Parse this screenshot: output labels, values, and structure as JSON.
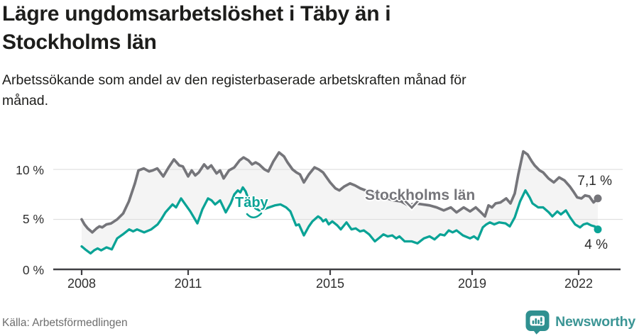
{
  "header": {
    "title": "Lägre ungdomsarbetslöshet i Täby än i\nStockholms län",
    "subtitle": "Arbetssökande som andel av den registerbaserade arbetskraften månad för\nmånad."
  },
  "chart_data": {
    "type": "line",
    "title": "Lägre ungdomsarbetslöshet i Täby än i Stockholms län",
    "subtitle": "Arbetssökande som andel av den registerbaserade arbetskraften månad för månad.",
    "grid": "horizontal-only",
    "legend_position": "inline-labels",
    "band_fill": "#f4f4f4",
    "x_axis": {
      "range": [
        2007.2,
        2023.2
      ],
      "ticks": [
        2008,
        2011,
        2015,
        2019,
        2022
      ],
      "labels": [
        "2008",
        "2011",
        "2015",
        "2019",
        "2022"
      ]
    },
    "y_axis": {
      "range": [
        0,
        12.5
      ],
      "unit": "%",
      "ticks": [
        0,
        5,
        10
      ],
      "labels": [
        "0 %",
        "5 %",
        "10 %"
      ]
    },
    "series": [
      {
        "name": "Stockholms län",
        "color": "#75757a",
        "end_label": "7,1 %",
        "end_value": 7.1,
        "points": [
          [
            2008.0,
            5.0
          ],
          [
            2008.08,
            4.5
          ],
          [
            2008.17,
            4.1
          ],
          [
            2008.3,
            3.7
          ],
          [
            2008.42,
            4.1
          ],
          [
            2008.5,
            4.3
          ],
          [
            2008.58,
            4.2
          ],
          [
            2008.7,
            4.5
          ],
          [
            2008.83,
            4.6
          ],
          [
            2009.0,
            5.0
          ],
          [
            2009.17,
            5.6
          ],
          [
            2009.33,
            6.8
          ],
          [
            2009.5,
            8.6
          ],
          [
            2009.6,
            9.9
          ],
          [
            2009.75,
            10.1
          ],
          [
            2009.9,
            9.8
          ],
          [
            2010.0,
            9.9
          ],
          [
            2010.13,
            10.1
          ],
          [
            2010.3,
            9.3
          ],
          [
            2010.45,
            10.2
          ],
          [
            2010.6,
            11.0
          ],
          [
            2010.75,
            10.4
          ],
          [
            2010.85,
            10.3
          ],
          [
            2011.0,
            9.3
          ],
          [
            2011.1,
            9.9
          ],
          [
            2011.2,
            9.4
          ],
          [
            2011.3,
            9.7
          ],
          [
            2011.45,
            10.5
          ],
          [
            2011.55,
            10.1
          ],
          [
            2011.65,
            10.4
          ],
          [
            2011.8,
            9.6
          ],
          [
            2011.9,
            9.9
          ],
          [
            2012.0,
            9.1
          ],
          [
            2012.15,
            9.9
          ],
          [
            2012.3,
            10.2
          ],
          [
            2012.45,
            10.9
          ],
          [
            2012.56,
            11.2
          ],
          [
            2012.7,
            10.9
          ],
          [
            2012.8,
            10.5
          ],
          [
            2012.9,
            10.7
          ],
          [
            2013.0,
            10.5
          ],
          [
            2013.15,
            10.0
          ],
          [
            2013.26,
            9.8
          ],
          [
            2013.4,
            10.8
          ],
          [
            2013.56,
            11.7
          ],
          [
            2013.7,
            11.3
          ],
          [
            2013.8,
            10.7
          ],
          [
            2013.94,
            10.0
          ],
          [
            2014.05,
            9.7
          ],
          [
            2014.15,
            9.5
          ],
          [
            2014.26,
            8.7
          ],
          [
            2014.4,
            9.5
          ],
          [
            2014.56,
            10.2
          ],
          [
            2014.68,
            10.0
          ],
          [
            2014.8,
            9.7
          ],
          [
            2015.0,
            8.7
          ],
          [
            2015.15,
            8.1
          ],
          [
            2015.26,
            7.9
          ],
          [
            2015.4,
            8.3
          ],
          [
            2015.56,
            8.6
          ],
          [
            2015.7,
            8.4
          ],
          [
            2015.85,
            8.1
          ],
          [
            2016.0,
            7.9
          ],
          [
            2016.2,
            7.6
          ],
          [
            2016.4,
            7.3
          ],
          [
            2016.6,
            7.1
          ],
          [
            2016.8,
            6.9
          ],
          [
            2017.0,
            6.8
          ],
          [
            2017.2,
            6.4
          ],
          [
            2017.4,
            6.6
          ],
          [
            2017.6,
            6.5
          ],
          [
            2017.8,
            6.4
          ],
          [
            2018.0,
            6.2
          ],
          [
            2018.2,
            5.9
          ],
          [
            2018.4,
            6.2
          ],
          [
            2018.56,
            5.7
          ],
          [
            2018.76,
            6.2
          ],
          [
            2018.94,
            5.8
          ],
          [
            2019.1,
            6.2
          ],
          [
            2019.25,
            5.7
          ],
          [
            2019.36,
            5.3
          ],
          [
            2019.46,
            6.4
          ],
          [
            2019.56,
            6.2
          ],
          [
            2019.66,
            6.6
          ],
          [
            2019.8,
            6.7
          ],
          [
            2019.96,
            7.1
          ],
          [
            2020.08,
            6.6
          ],
          [
            2020.2,
            7.6
          ],
          [
            2020.3,
            9.5
          ],
          [
            2020.44,
            11.8
          ],
          [
            2020.56,
            11.5
          ],
          [
            2020.68,
            10.8
          ],
          [
            2020.76,
            10.4
          ],
          [
            2020.9,
            9.9
          ],
          [
            2021.0,
            9.7
          ],
          [
            2021.15,
            9.1
          ],
          [
            2021.3,
            8.7
          ],
          [
            2021.45,
            9.2
          ],
          [
            2021.6,
            8.9
          ],
          [
            2021.75,
            8.3
          ],
          [
            2021.85,
            7.8
          ],
          [
            2021.96,
            7.2
          ],
          [
            2022.08,
            7.1
          ],
          [
            2022.18,
            7.4
          ],
          [
            2022.3,
            7.3
          ],
          [
            2022.42,
            6.7
          ],
          [
            2022.54,
            7.1
          ]
        ]
      },
      {
        "name": "Täby",
        "color": "#0aa396",
        "end_label": "4 %",
        "end_value": 4.0,
        "points": [
          [
            2008.0,
            2.3
          ],
          [
            2008.1,
            2.0
          ],
          [
            2008.25,
            1.6
          ],
          [
            2008.35,
            1.9
          ],
          [
            2008.45,
            2.1
          ],
          [
            2008.55,
            1.9
          ],
          [
            2008.7,
            2.2
          ],
          [
            2008.85,
            2.0
          ],
          [
            2009.0,
            3.1
          ],
          [
            2009.16,
            3.5
          ],
          [
            2009.34,
            4.0
          ],
          [
            2009.45,
            3.8
          ],
          [
            2009.56,
            4.0
          ],
          [
            2009.76,
            3.7
          ],
          [
            2009.96,
            4.0
          ],
          [
            2010.14,
            4.5
          ],
          [
            2010.24,
            5.0
          ],
          [
            2010.36,
            5.7
          ],
          [
            2010.56,
            6.5
          ],
          [
            2010.66,
            6.2
          ],
          [
            2010.8,
            7.1
          ],
          [
            2010.9,
            6.6
          ],
          [
            2011.06,
            5.8
          ],
          [
            2011.26,
            4.6
          ],
          [
            2011.4,
            6.0
          ],
          [
            2011.56,
            7.1
          ],
          [
            2011.66,
            6.9
          ],
          [
            2011.76,
            6.5
          ],
          [
            2011.9,
            6.9
          ],
          [
            2012.06,
            5.7
          ],
          [
            2012.2,
            6.6
          ],
          [
            2012.3,
            7.5
          ],
          [
            2012.4,
            7.9
          ],
          [
            2012.47,
            7.7
          ],
          [
            2012.54,
            8.2
          ],
          [
            2012.62,
            7.8
          ],
          [
            2012.75,
            6.5
          ],
          [
            2012.9,
            6.1
          ],
          [
            2013.0,
            5.9
          ],
          [
            2013.2,
            6.1
          ],
          [
            2013.44,
            6.4
          ],
          [
            2013.6,
            6.5
          ],
          [
            2013.76,
            6.2
          ],
          [
            2013.88,
            5.8
          ],
          [
            2014.04,
            4.4
          ],
          [
            2014.12,
            4.5
          ],
          [
            2014.26,
            3.4
          ],
          [
            2014.4,
            4.3
          ],
          [
            2014.5,
            4.8
          ],
          [
            2014.66,
            5.3
          ],
          [
            2014.74,
            5.1
          ],
          [
            2014.8,
            4.8
          ],
          [
            2014.88,
            5.0
          ],
          [
            2014.96,
            4.5
          ],
          [
            2015.06,
            4.8
          ],
          [
            2015.2,
            4.4
          ],
          [
            2015.3,
            4.0
          ],
          [
            2015.46,
            4.7
          ],
          [
            2015.6,
            4.0
          ],
          [
            2015.72,
            4.1
          ],
          [
            2015.84,
            3.8
          ],
          [
            2015.95,
            3.9
          ],
          [
            2016.1,
            3.5
          ],
          [
            2016.26,
            2.8
          ],
          [
            2016.4,
            3.2
          ],
          [
            2016.5,
            3.5
          ],
          [
            2016.62,
            3.3
          ],
          [
            2016.75,
            3.4
          ],
          [
            2016.86,
            3.1
          ],
          [
            2016.95,
            3.3
          ],
          [
            2017.1,
            2.8
          ],
          [
            2017.3,
            2.8
          ],
          [
            2017.46,
            2.6
          ],
          [
            2017.64,
            3.1
          ],
          [
            2017.8,
            3.3
          ],
          [
            2017.94,
            3.0
          ],
          [
            2018.1,
            3.5
          ],
          [
            2018.22,
            3.4
          ],
          [
            2018.34,
            3.9
          ],
          [
            2018.45,
            3.7
          ],
          [
            2018.56,
            3.9
          ],
          [
            2018.74,
            3.4
          ],
          [
            2018.94,
            3.1
          ],
          [
            2019.05,
            3.3
          ],
          [
            2019.16,
            3.0
          ],
          [
            2019.3,
            4.2
          ],
          [
            2019.4,
            4.5
          ],
          [
            2019.5,
            4.7
          ],
          [
            2019.62,
            4.5
          ],
          [
            2019.76,
            4.7
          ],
          [
            2019.94,
            4.6
          ],
          [
            2020.06,
            4.3
          ],
          [
            2020.2,
            5.2
          ],
          [
            2020.35,
            6.8
          ],
          [
            2020.5,
            7.9
          ],
          [
            2020.62,
            7.2
          ],
          [
            2020.7,
            6.6
          ],
          [
            2020.86,
            6.2
          ],
          [
            2021.0,
            6.2
          ],
          [
            2021.16,
            5.7
          ],
          [
            2021.26,
            5.3
          ],
          [
            2021.4,
            5.8
          ],
          [
            2021.5,
            5.5
          ],
          [
            2021.64,
            5.9
          ],
          [
            2021.76,
            5.2
          ],
          [
            2021.9,
            4.5
          ],
          [
            2022.04,
            4.2
          ],
          [
            2022.14,
            4.5
          ],
          [
            2022.24,
            4.6
          ],
          [
            2022.35,
            4.4
          ],
          [
            2022.45,
            4.3
          ],
          [
            2022.54,
            4.0
          ]
        ]
      }
    ]
  },
  "footer": {
    "source": "Källa: Arbetsförmedlingen",
    "logo_text": "Newsworthy"
  }
}
